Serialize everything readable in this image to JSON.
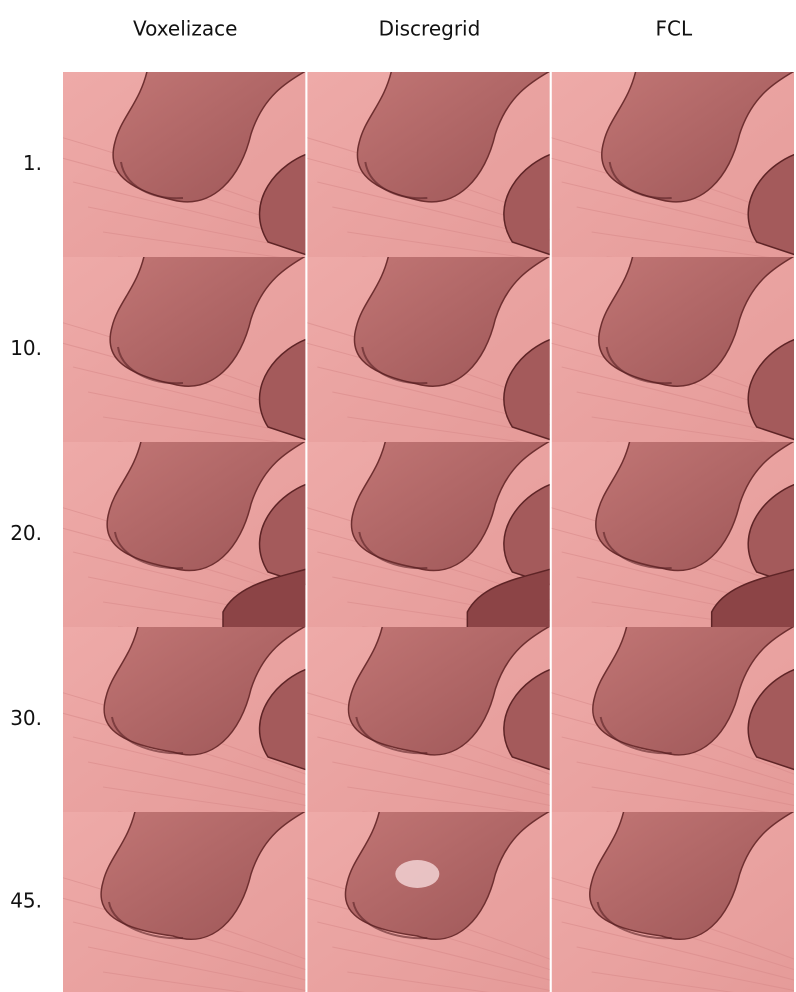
{
  "columns": [
    "Voxelizace",
    "Discregrid",
    "FCL"
  ],
  "rows": [
    "1.",
    "10.",
    "20.",
    "30.",
    "45."
  ]
}
